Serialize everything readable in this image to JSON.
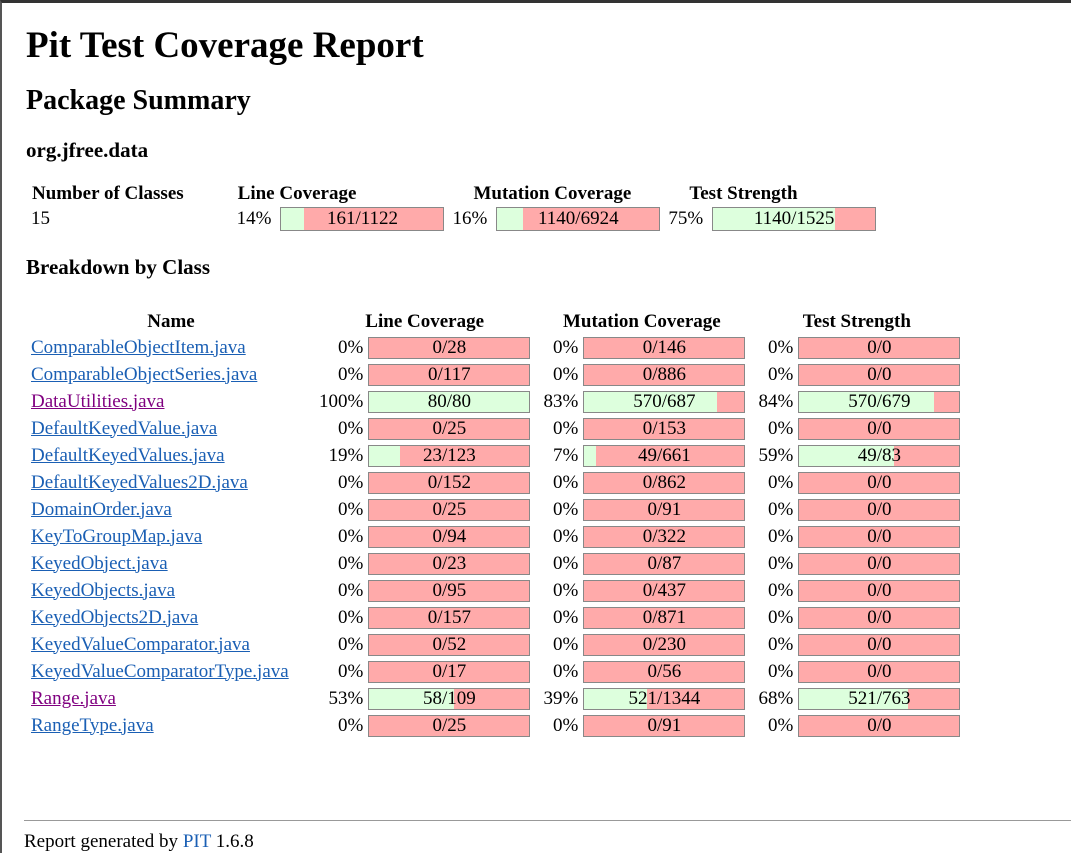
{
  "title": "Pit Test Coverage Report",
  "subtitle": "Package Summary",
  "package": "org.jfree.data",
  "summary": {
    "headers": {
      "classes": "Number of Classes",
      "line": "Line Coverage",
      "mutation": "Mutation Coverage",
      "strength": "Test Strength"
    },
    "classes": "15",
    "line": {
      "pct": "14%",
      "label": "161/1122",
      "fraction": 0.14
    },
    "mutation": {
      "pct": "16%",
      "label": "1140/6924",
      "fraction": 0.16
    },
    "strength": {
      "pct": "75%",
      "label": "1140/1525",
      "fraction": 0.75
    }
  },
  "breakdown_title": "Breakdown by Class",
  "columns": {
    "name": "Name",
    "line": "Line Coverage",
    "mutation": "Mutation Coverage",
    "strength": "Test Strength"
  },
  "rows": [
    {
      "name": "ComparableObjectItem.java",
      "visited": false,
      "line": [
        "0%",
        "0/28",
        0
      ],
      "mutation": [
        "0%",
        "0/146",
        0
      ],
      "strength": [
        "0%",
        "0/0",
        0
      ]
    },
    {
      "name": "ComparableObjectSeries.java",
      "visited": false,
      "line": [
        "0%",
        "0/117",
        0
      ],
      "mutation": [
        "0%",
        "0/886",
        0
      ],
      "strength": [
        "0%",
        "0/0",
        0
      ]
    },
    {
      "name": "DataUtilities.java",
      "visited": true,
      "line": [
        "100%",
        "80/80",
        1.0
      ],
      "mutation": [
        "83%",
        "570/687",
        0.83
      ],
      "strength": [
        "84%",
        "570/679",
        0.84
      ]
    },
    {
      "name": "DefaultKeyedValue.java",
      "visited": false,
      "line": [
        "0%",
        "0/25",
        0
      ],
      "mutation": [
        "0%",
        "0/153",
        0
      ],
      "strength": [
        "0%",
        "0/0",
        0
      ]
    },
    {
      "name": "DefaultKeyedValues.java",
      "visited": false,
      "line": [
        "19%",
        "23/123",
        0.19
      ],
      "mutation": [
        "7%",
        "49/661",
        0.07
      ],
      "strength": [
        "59%",
        "49/83",
        0.59
      ]
    },
    {
      "name": "DefaultKeyedValues2D.java",
      "visited": false,
      "line": [
        "0%",
        "0/152",
        0
      ],
      "mutation": [
        "0%",
        "0/862",
        0
      ],
      "strength": [
        "0%",
        "0/0",
        0
      ]
    },
    {
      "name": "DomainOrder.java",
      "visited": false,
      "line": [
        "0%",
        "0/25",
        0
      ],
      "mutation": [
        "0%",
        "0/91",
        0
      ],
      "strength": [
        "0%",
        "0/0",
        0
      ]
    },
    {
      "name": "KeyToGroupMap.java",
      "visited": false,
      "line": [
        "0%",
        "0/94",
        0
      ],
      "mutation": [
        "0%",
        "0/322",
        0
      ],
      "strength": [
        "0%",
        "0/0",
        0
      ]
    },
    {
      "name": "KeyedObject.java",
      "visited": false,
      "line": [
        "0%",
        "0/23",
        0
      ],
      "mutation": [
        "0%",
        "0/87",
        0
      ],
      "strength": [
        "0%",
        "0/0",
        0
      ]
    },
    {
      "name": "KeyedObjects.java",
      "visited": false,
      "line": [
        "0%",
        "0/95",
        0
      ],
      "mutation": [
        "0%",
        "0/437",
        0
      ],
      "strength": [
        "0%",
        "0/0",
        0
      ]
    },
    {
      "name": "KeyedObjects2D.java",
      "visited": false,
      "line": [
        "0%",
        "0/157",
        0
      ],
      "mutation": [
        "0%",
        "0/871",
        0
      ],
      "strength": [
        "0%",
        "0/0",
        0
      ]
    },
    {
      "name": "KeyedValueComparator.java",
      "visited": false,
      "line": [
        "0%",
        "0/52",
        0
      ],
      "mutation": [
        "0%",
        "0/230",
        0
      ],
      "strength": [
        "0%",
        "0/0",
        0
      ]
    },
    {
      "name": "KeyedValueComparatorType.java",
      "visited": false,
      "line": [
        "0%",
        "0/17",
        0
      ],
      "mutation": [
        "0%",
        "0/56",
        0
      ],
      "strength": [
        "0%",
        "0/0",
        0
      ]
    },
    {
      "name": "Range.java",
      "visited": true,
      "line": [
        "53%",
        "58/109",
        0.53
      ],
      "mutation": [
        "39%",
        "521/1344",
        0.39
      ],
      "strength": [
        "68%",
        "521/763",
        0.68
      ]
    },
    {
      "name": "RangeType.java",
      "visited": false,
      "line": [
        "0%",
        "0/25",
        0
      ],
      "mutation": [
        "0%",
        "0/91",
        0
      ],
      "strength": [
        "0%",
        "0/0",
        0
      ]
    }
  ],
  "footer": {
    "prefix": "Report generated by ",
    "link": "PIT",
    "version": " 1.6.8"
  },
  "colors": {
    "covered": "#ddffdd",
    "uncovered": "#ffaaaa",
    "link": "#1a5fb4",
    "visited_link": "#800080"
  }
}
